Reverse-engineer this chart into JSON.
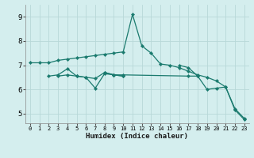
{
  "xlabel": "Humidex (Indice chaleur)",
  "background_color": "#d4eeee",
  "line_color": "#1a7a6e",
  "grid_color": "#b8d8d8",
  "xlim": [
    -0.5,
    23.5
  ],
  "ylim": [
    4.6,
    9.5
  ],
  "yticks": [
    5,
    6,
    7,
    8,
    9
  ],
  "xticks": [
    0,
    1,
    2,
    3,
    4,
    5,
    6,
    7,
    8,
    9,
    10,
    11,
    12,
    13,
    14,
    15,
    16,
    17,
    18,
    19,
    20,
    21,
    22,
    23
  ],
  "series": [
    [
      7.1,
      7.1,
      7.1,
      7.2,
      7.25,
      7.3,
      7.35,
      7.4,
      7.45,
      7.5,
      7.55,
      9.1,
      7.8,
      7.5,
      7.05,
      7.0,
      6.9,
      6.75,
      6.6,
      6.5,
      6.35,
      6.1,
      5.2,
      4.8
    ],
    [
      null,
      null,
      null,
      6.55,
      6.6,
      6.55,
      6.5,
      6.45,
      6.7,
      6.6,
      6.55,
      null,
      null,
      null,
      null,
      null,
      null,
      null,
      null,
      null,
      null,
      null,
      null,
      null
    ],
    [
      null,
      null,
      6.55,
      6.6,
      6.85,
      6.55,
      6.5,
      6.05,
      6.65,
      6.6,
      6.55,
      null,
      null,
      null,
      null,
      null,
      null,
      null,
      null,
      null,
      null,
      null,
      null,
      null
    ],
    [
      null,
      null,
      null,
      null,
      null,
      null,
      null,
      null,
      6.7,
      6.6,
      6.6,
      null,
      null,
      null,
      null,
      null,
      null,
      6.55,
      6.55,
      null,
      null,
      null,
      null,
      null
    ],
    [
      null,
      null,
      null,
      null,
      null,
      null,
      null,
      null,
      null,
      null,
      null,
      null,
      null,
      null,
      null,
      null,
      7.0,
      6.9,
      6.55,
      6.0,
      6.05,
      6.1,
      5.15,
      4.75
    ]
  ],
  "xlabel_fontsize": 6.5,
  "tick_fontsize": 6,
  "linewidth": 0.9,
  "markersize": 2.2
}
